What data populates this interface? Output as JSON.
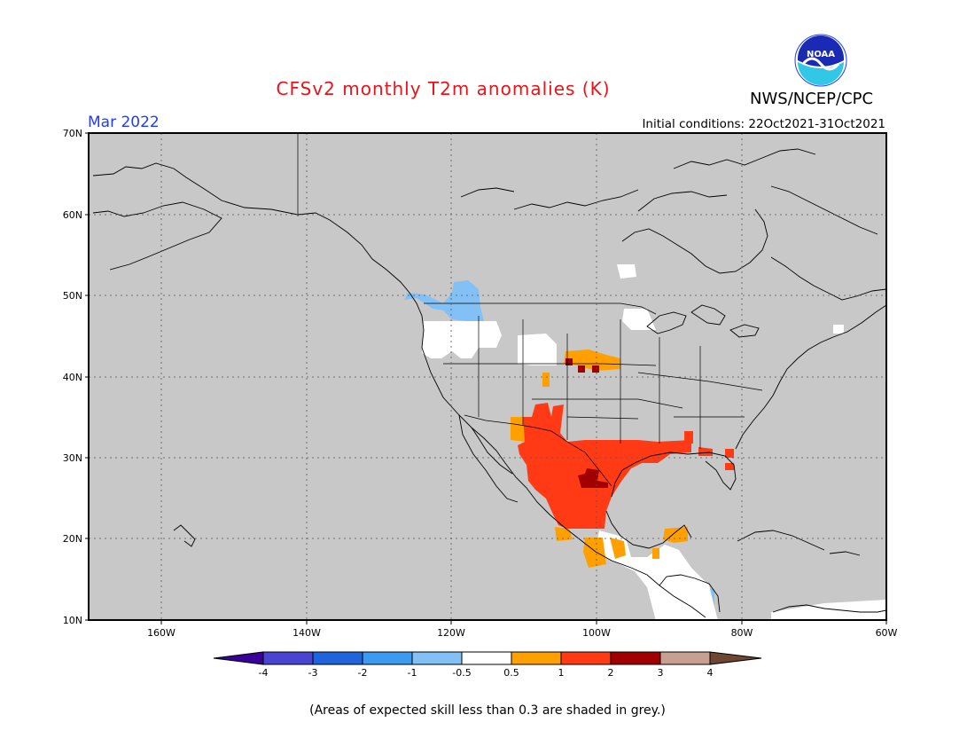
{
  "header": {
    "title": "CFSv2 monthly T2m anomalies (K)",
    "agency": "NWS/NCEP/CPC",
    "logo_text": "NOAA",
    "month": "Mar 2022",
    "initial_conditions": "Initial conditions: 22Oct2021-31Oct2021"
  },
  "footnote": "(Areas of expected skill less than 0.3 are shaded in grey.)",
  "colors": {
    "title": "#e8141a",
    "month": "#1e3cff",
    "land_grey": "#c8c8c8"
  },
  "map": {
    "lat_labels": [
      "70N",
      "60N",
      "50N",
      "40N",
      "30N",
      "20N",
      "10N"
    ],
    "lon_labels": [
      "160W",
      "140W",
      "120W",
      "100W",
      "80W",
      "60W"
    ]
  },
  "colorbar": {
    "tick_labels": [
      "-4",
      "-3",
      "-2",
      "-1",
      "-0.5",
      "0.5",
      "1",
      "2",
      "3",
      "4"
    ],
    "colors": [
      "#3a009a",
      "#4a44d2",
      "#1e64dc",
      "#3c9bf0",
      "#82c0f5",
      "#ffffff",
      "#ffa000",
      "#ff3a14",
      "#a00000",
      "#c8a090",
      "#6e4632"
    ]
  }
}
